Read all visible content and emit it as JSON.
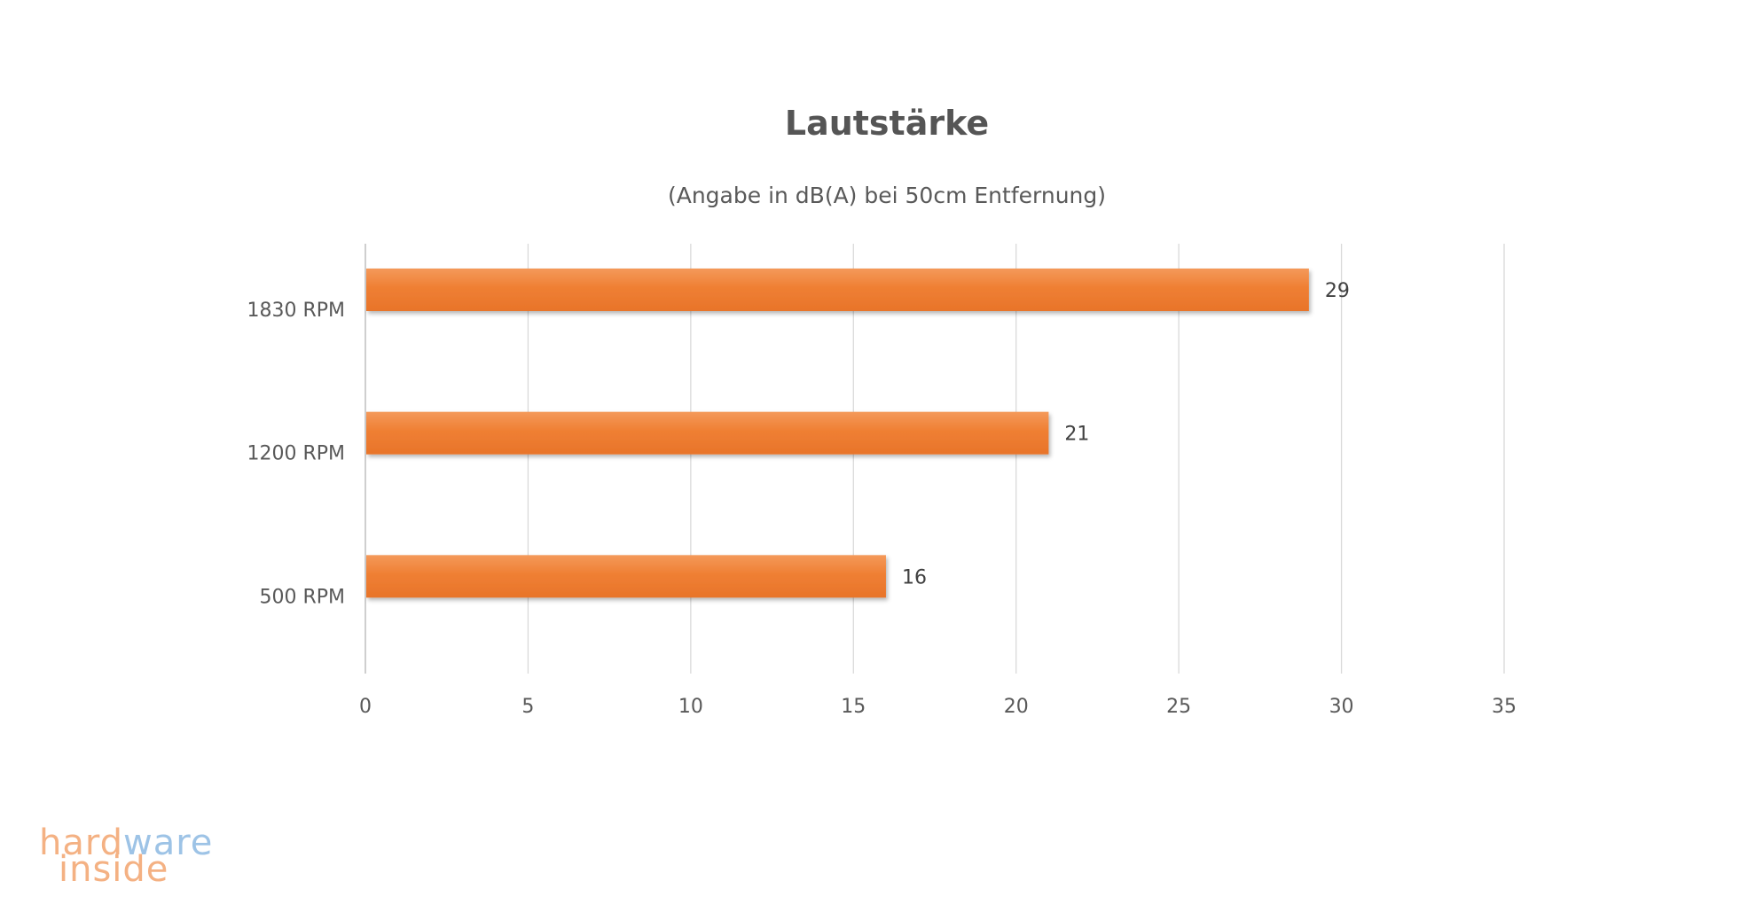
{
  "chart_data": {
    "type": "bar",
    "orientation": "horizontal",
    "title": "Lautstärke",
    "subtitle": "(Angabe in dB(A) bei 50cm Entfernung)",
    "categories": [
      "1830 RPM",
      "1200 RPM",
      "500 RPM"
    ],
    "values": [
      29,
      21,
      16
    ],
    "data_labels": [
      "29",
      "21",
      "16"
    ],
    "xlim": [
      0,
      35
    ],
    "x_ticks": [
      "0",
      "5",
      "10",
      "15",
      "20",
      "25",
      "30",
      "35"
    ],
    "xlabel": "",
    "ylabel": "",
    "grid": "vertical",
    "legend": "none",
    "bar_color": "#ed7d31"
  },
  "watermark": {
    "line1_part1": "hard",
    "line1_part2": "ware",
    "line2": "inside",
    "color_primary": "#f4b183",
    "color_secondary": "#9dc3e6"
  }
}
